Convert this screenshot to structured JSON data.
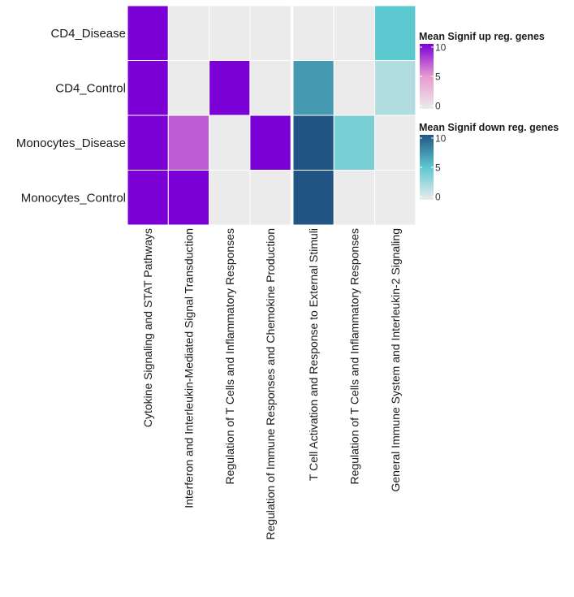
{
  "chart_data": {
    "type": "heatmap",
    "rows": [
      "CD4_Disease",
      "CD4_Control",
      "Monocytes_Disease",
      "Monocytes_Control"
    ],
    "panels": [
      {
        "direction": "up",
        "columns": [
          "Cytokine Signaling and STAT Pathways",
          "Interferon and Interleukin-Mediated Signal Transduction",
          "Regulation of T Cells and Inflammatory Responses",
          "Regulation of Immune Responses and Chemokine Production"
        ],
        "values": [
          [
            10,
            0,
            0,
            0
          ],
          [
            10,
            0,
            10,
            0
          ],
          [
            10,
            7,
            0,
            10
          ],
          [
            10,
            10,
            0,
            0
          ]
        ]
      },
      {
        "direction": "down",
        "columns": [
          "T Cell Activation and Response to External Stimuli",
          "Regulation of T Cells and Inflammatory Responses",
          "General Immune System and Interleukin-2 Signaling"
        ],
        "values": [
          [
            0,
            0,
            5
          ],
          [
            7,
            0,
            2
          ],
          [
            10,
            4,
            0
          ],
          [
            10,
            0,
            0
          ]
        ]
      }
    ],
    "legends": [
      {
        "title": "Mean Signif up reg. genes",
        "ticks": [
          10,
          5,
          0
        ],
        "range": [
          0,
          10
        ],
        "colors": {
          "low": "#ebebeb",
          "mid": "#e89ad0",
          "high": "#7b00d6"
        }
      },
      {
        "title": "Mean Signif down reg. genes",
        "ticks": [
          10,
          5,
          0
        ],
        "range": [
          0,
          10
        ],
        "colors": {
          "low": "#ebebeb",
          "mid": "#5cc8d0",
          "high": "#225583"
        }
      }
    ],
    "empty_color": "#ebebeb"
  }
}
